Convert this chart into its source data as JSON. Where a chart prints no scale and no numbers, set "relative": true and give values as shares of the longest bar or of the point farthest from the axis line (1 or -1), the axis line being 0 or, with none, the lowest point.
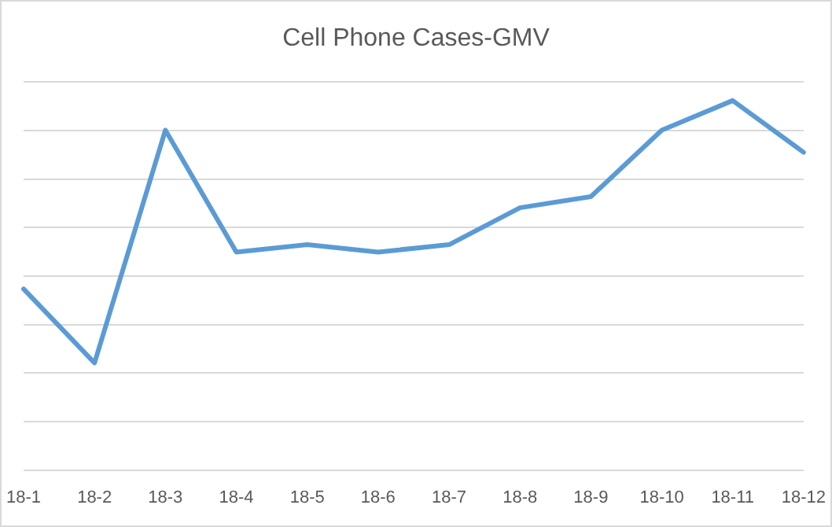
{
  "chart_data": {
    "type": "line",
    "title": "Cell Phone Cases-GMV",
    "relative": true,
    "grid": "y",
    "legend": false,
    "marker": "none",
    "line_style": "solid",
    "categories": [
      "18-1",
      "18-2",
      "18-3",
      "18-4",
      "18-5",
      "18-6",
      "18-7",
      "18-8",
      "18-9",
      "18-10",
      "18-11",
      "18-12"
    ],
    "series": [
      {
        "color": "#5b9bd5",
        "values": [
          0.49,
          0.29,
          0.92,
          0.59,
          0.61,
          0.59,
          0.61,
          0.71,
          0.74,
          0.92,
          1,
          0.86
        ]
      }
    ]
  }
}
